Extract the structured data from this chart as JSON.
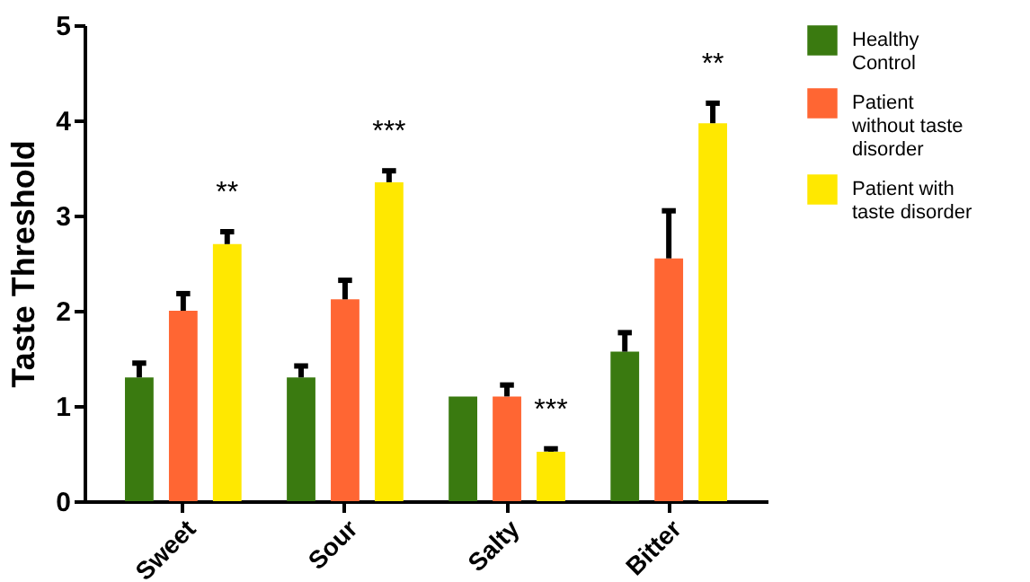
{
  "chart_data": {
    "type": "bar",
    "ylabel": "Taste Threshold",
    "categories": [
      "Sweet",
      "Sour",
      "Salty",
      "Bitter"
    ],
    "series": [
      {
        "name": "Healthy Control",
        "color": "#3a7a10",
        "values": [
          1.3,
          1.3,
          1.1,
          1.57
        ],
        "errors": [
          [
            1.3,
            1.45
          ],
          [
            1.3,
            1.42
          ],
          null,
          [
            1.57,
            1.77
          ]
        ]
      },
      {
        "name": "Patient without taste disorder",
        "color": "#ff6633",
        "values": [
          2.0,
          2.12,
          1.1,
          2.55
        ],
        "errors": [
          [
            2.0,
            2.18
          ],
          [
            2.12,
            2.32
          ],
          [
            1.1,
            1.22
          ],
          [
            2.55,
            3.05
          ]
        ]
      },
      {
        "name": "Patient with taste disorder",
        "color": "#ffe800",
        "values": [
          2.7,
          3.35,
          0.52,
          3.97
        ],
        "errors": [
          [
            2.7,
            2.83
          ],
          [
            3.35,
            3.47
          ],
          [
            0.52,
            0.55
          ],
          [
            3.97,
            4.18
          ]
        ]
      }
    ],
    "ylim": [
      0,
      5
    ],
    "yticks": [
      0,
      1,
      2,
      3,
      4,
      5
    ],
    "grid": false,
    "legend": "top right",
    "annotations": [
      "**",
      "***",
      "***",
      "**"
    ]
  }
}
